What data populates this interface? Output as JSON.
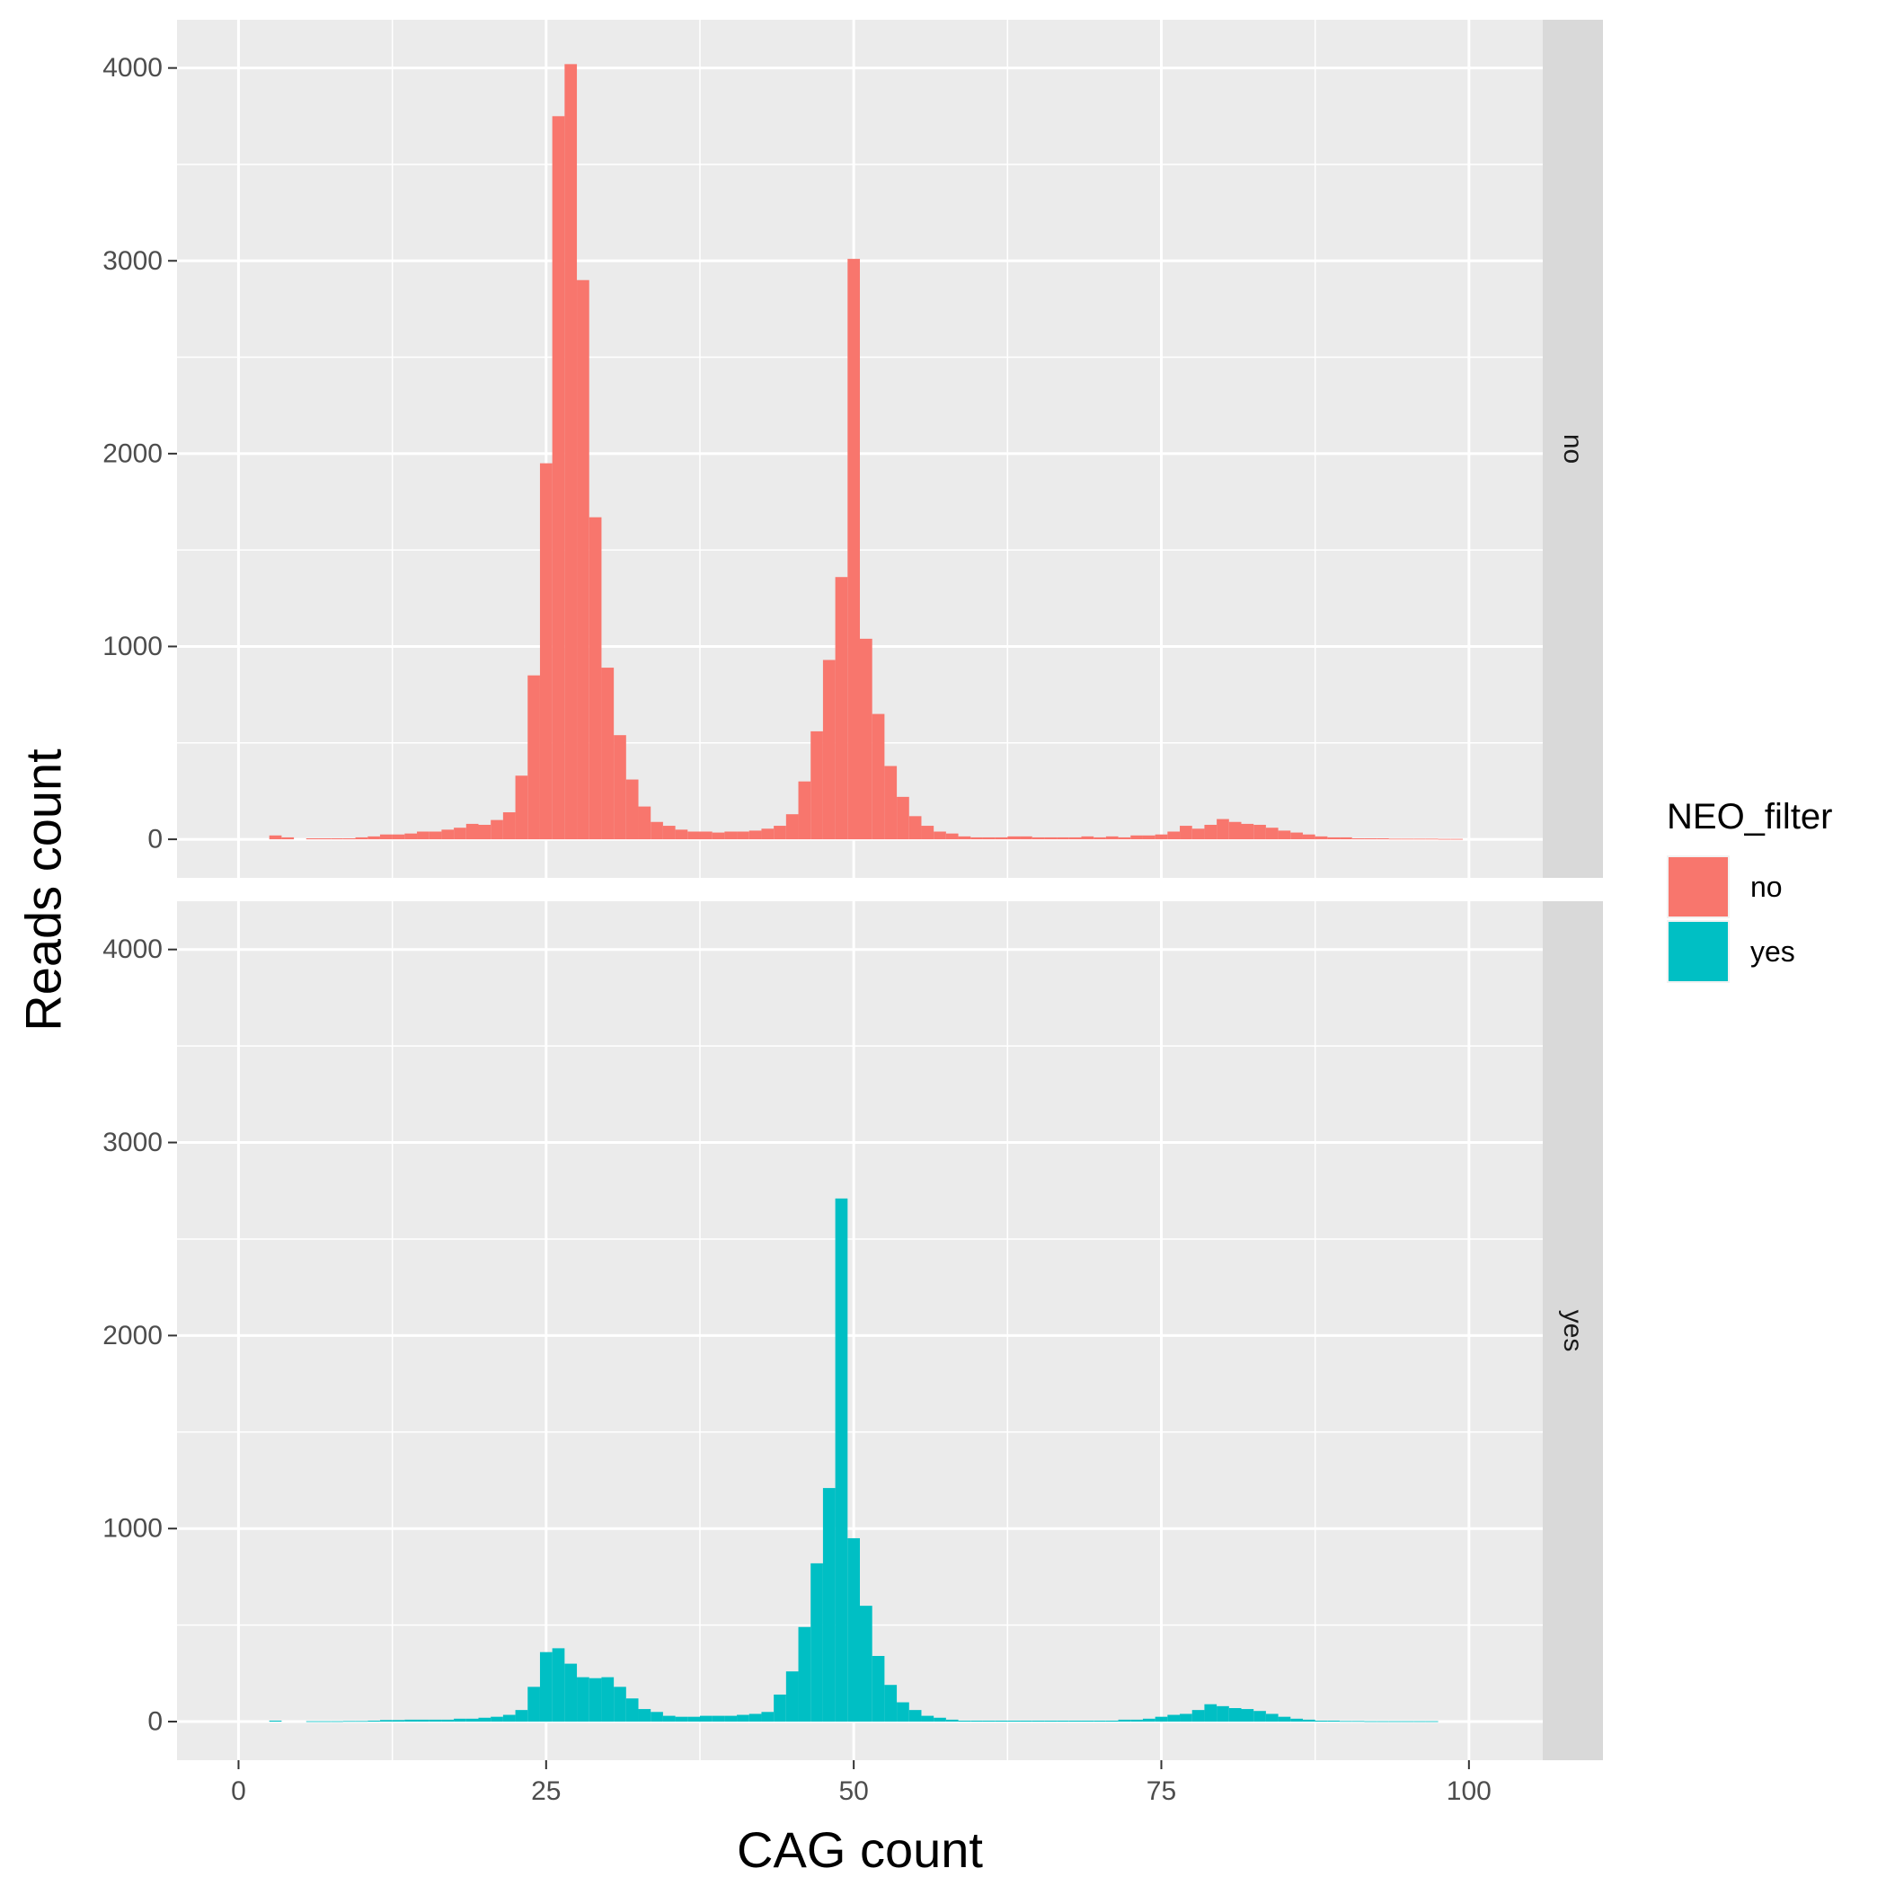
{
  "chart_data": {
    "type": "bar",
    "subtype": "faceted-histogram",
    "xlabel": "CAG count",
    "ylabel": "Reads count",
    "xlim": [
      -5,
      106
    ],
    "ylim": [
      -200,
      4250
    ],
    "x_ticks": [
      0,
      25,
      50,
      75,
      100
    ],
    "x_tick_labels": [
      "0",
      "25",
      "50",
      "75",
      "100"
    ],
    "y_ticks": [
      0,
      1000,
      2000,
      3000,
      4000
    ],
    "y_tick_labels": [
      "0",
      "1000",
      "2000",
      "3000",
      "4000"
    ],
    "bin_width": 1,
    "grid": true,
    "legend": {
      "title": "NEO_filter",
      "position": "right",
      "items": [
        {
          "label": "no",
          "color": "#F8766D"
        },
        {
          "label": "yes",
          "color": "#00BFC4"
        }
      ]
    },
    "facets": [
      {
        "label": "no",
        "color": "#F8766D",
        "bins": [
          {
            "x": 3,
            "y": 20
          },
          {
            "x": 4,
            "y": 10
          },
          {
            "x": 6,
            "y": 5
          },
          {
            "x": 7,
            "y": 5
          },
          {
            "x": 8,
            "y": 5
          },
          {
            "x": 9,
            "y": 5
          },
          {
            "x": 10,
            "y": 10
          },
          {
            "x": 11,
            "y": 15
          },
          {
            "x": 12,
            "y": 25
          },
          {
            "x": 13,
            "y": 25
          },
          {
            "x": 14,
            "y": 30
          },
          {
            "x": 15,
            "y": 40
          },
          {
            "x": 16,
            "y": 40
          },
          {
            "x": 17,
            "y": 50
          },
          {
            "x": 18,
            "y": 60
          },
          {
            "x": 19,
            "y": 80
          },
          {
            "x": 20,
            "y": 75
          },
          {
            "x": 21,
            "y": 100
          },
          {
            "x": 22,
            "y": 140
          },
          {
            "x": 23,
            "y": 330
          },
          {
            "x": 24,
            "y": 850
          },
          {
            "x": 25,
            "y": 1950
          },
          {
            "x": 26,
            "y": 3750
          },
          {
            "x": 27,
            "y": 4020
          },
          {
            "x": 28,
            "y": 2900
          },
          {
            "x": 29,
            "y": 1670
          },
          {
            "x": 30,
            "y": 890
          },
          {
            "x": 31,
            "y": 540
          },
          {
            "x": 32,
            "y": 310
          },
          {
            "x": 33,
            "y": 170
          },
          {
            "x": 34,
            "y": 90
          },
          {
            "x": 35,
            "y": 70
          },
          {
            "x": 36,
            "y": 50
          },
          {
            "x": 37,
            "y": 40
          },
          {
            "x": 38,
            "y": 40
          },
          {
            "x": 39,
            "y": 35
          },
          {
            "x": 40,
            "y": 40
          },
          {
            "x": 41,
            "y": 40
          },
          {
            "x": 42,
            "y": 45
          },
          {
            "x": 43,
            "y": 55
          },
          {
            "x": 44,
            "y": 70
          },
          {
            "x": 45,
            "y": 130
          },
          {
            "x": 46,
            "y": 300
          },
          {
            "x": 47,
            "y": 560
          },
          {
            "x": 48,
            "y": 930
          },
          {
            "x": 49,
            "y": 1360
          },
          {
            "x": 50,
            "y": 3010
          },
          {
            "x": 51,
            "y": 1040
          },
          {
            "x": 52,
            "y": 650
          },
          {
            "x": 53,
            "y": 380
          },
          {
            "x": 54,
            "y": 220
          },
          {
            "x": 55,
            "y": 120
          },
          {
            "x": 56,
            "y": 70
          },
          {
            "x": 57,
            "y": 40
          },
          {
            "x": 58,
            "y": 30
          },
          {
            "x": 59,
            "y": 15
          },
          {
            "x": 60,
            "y": 10
          },
          {
            "x": 61,
            "y": 10
          },
          {
            "x": 62,
            "y": 10
          },
          {
            "x": 63,
            "y": 15
          },
          {
            "x": 64,
            "y": 15
          },
          {
            "x": 65,
            "y": 10
          },
          {
            "x": 66,
            "y": 10
          },
          {
            "x": 67,
            "y": 10
          },
          {
            "x": 68,
            "y": 10
          },
          {
            "x": 69,
            "y": 15
          },
          {
            "x": 70,
            "y": 10
          },
          {
            "x": 71,
            "y": 15
          },
          {
            "x": 72,
            "y": 10
          },
          {
            "x": 73,
            "y": 20
          },
          {
            "x": 74,
            "y": 20
          },
          {
            "x": 75,
            "y": 25
          },
          {
            "x": 76,
            "y": 40
          },
          {
            "x": 77,
            "y": 70
          },
          {
            "x": 78,
            "y": 55
          },
          {
            "x": 79,
            "y": 75
          },
          {
            "x": 80,
            "y": 105
          },
          {
            "x": 81,
            "y": 90
          },
          {
            "x": 82,
            "y": 80
          },
          {
            "x": 83,
            "y": 75
          },
          {
            "x": 84,
            "y": 60
          },
          {
            "x": 85,
            "y": 45
          },
          {
            "x": 86,
            "y": 35
          },
          {
            "x": 87,
            "y": 25
          },
          {
            "x": 88,
            "y": 15
          },
          {
            "x": 89,
            "y": 10
          },
          {
            "x": 90,
            "y": 10
          },
          {
            "x": 91,
            "y": 5
          },
          {
            "x": 92,
            "y": 5
          },
          {
            "x": 93,
            "y": 5
          },
          {
            "x": 94,
            "y": 3
          },
          {
            "x": 95,
            "y": 3
          },
          {
            "x": 96,
            "y": 3
          },
          {
            "x": 97,
            "y": 3
          },
          {
            "x": 98,
            "y": 2
          },
          {
            "x": 99,
            "y": 2
          }
        ]
      },
      {
        "label": "yes",
        "color": "#00BFC4",
        "bins": [
          {
            "x": 3,
            "y": 5
          },
          {
            "x": 6,
            "y": 2
          },
          {
            "x": 7,
            "y": 2
          },
          {
            "x": 8,
            "y": 2
          },
          {
            "x": 9,
            "y": 3
          },
          {
            "x": 10,
            "y": 3
          },
          {
            "x": 11,
            "y": 5
          },
          {
            "x": 12,
            "y": 8
          },
          {
            "x": 13,
            "y": 8
          },
          {
            "x": 14,
            "y": 10
          },
          {
            "x": 15,
            "y": 10
          },
          {
            "x": 16,
            "y": 10
          },
          {
            "x": 17,
            "y": 10
          },
          {
            "x": 18,
            "y": 15
          },
          {
            "x": 19,
            "y": 15
          },
          {
            "x": 20,
            "y": 20
          },
          {
            "x": 21,
            "y": 25
          },
          {
            "x": 22,
            "y": 35
          },
          {
            "x": 23,
            "y": 60
          },
          {
            "x": 24,
            "y": 180
          },
          {
            "x": 25,
            "y": 360
          },
          {
            "x": 26,
            "y": 380
          },
          {
            "x": 27,
            "y": 300
          },
          {
            "x": 28,
            "y": 230
          },
          {
            "x": 29,
            "y": 225
          },
          {
            "x": 30,
            "y": 230
          },
          {
            "x": 31,
            "y": 180
          },
          {
            "x": 32,
            "y": 120
          },
          {
            "x": 33,
            "y": 65
          },
          {
            "x": 34,
            "y": 50
          },
          {
            "x": 35,
            "y": 30
          },
          {
            "x": 36,
            "y": 25
          },
          {
            "x": 37,
            "y": 25
          },
          {
            "x": 38,
            "y": 30
          },
          {
            "x": 39,
            "y": 30
          },
          {
            "x": 40,
            "y": 30
          },
          {
            "x": 41,
            "y": 35
          },
          {
            "x": 42,
            "y": 40
          },
          {
            "x": 43,
            "y": 50
          },
          {
            "x": 44,
            "y": 140
          },
          {
            "x": 45,
            "y": 260
          },
          {
            "x": 46,
            "y": 490
          },
          {
            "x": 47,
            "y": 820
          },
          {
            "x": 48,
            "y": 1210
          },
          {
            "x": 49,
            "y": 2710
          },
          {
            "x": 50,
            "y": 950
          },
          {
            "x": 51,
            "y": 600
          },
          {
            "x": 52,
            "y": 340
          },
          {
            "x": 53,
            "y": 190
          },
          {
            "x": 54,
            "y": 100
          },
          {
            "x": 55,
            "y": 60
          },
          {
            "x": 56,
            "y": 30
          },
          {
            "x": 57,
            "y": 20
          },
          {
            "x": 58,
            "y": 10
          },
          {
            "x": 59,
            "y": 5
          },
          {
            "x": 60,
            "y": 5
          },
          {
            "x": 61,
            "y": 5
          },
          {
            "x": 62,
            "y": 5
          },
          {
            "x": 63,
            "y": 5
          },
          {
            "x": 64,
            "y": 5
          },
          {
            "x": 65,
            "y": 5
          },
          {
            "x": 66,
            "y": 5
          },
          {
            "x": 67,
            "y": 5
          },
          {
            "x": 68,
            "y": 5
          },
          {
            "x": 69,
            "y": 5
          },
          {
            "x": 70,
            "y": 5
          },
          {
            "x": 71,
            "y": 5
          },
          {
            "x": 72,
            "y": 10
          },
          {
            "x": 73,
            "y": 10
          },
          {
            "x": 74,
            "y": 15
          },
          {
            "x": 75,
            "y": 25
          },
          {
            "x": 76,
            "y": 35
          },
          {
            "x": 77,
            "y": 40
          },
          {
            "x": 78,
            "y": 60
          },
          {
            "x": 79,
            "y": 90
          },
          {
            "x": 80,
            "y": 80
          },
          {
            "x": 81,
            "y": 70
          },
          {
            "x": 82,
            "y": 65
          },
          {
            "x": 83,
            "y": 55
          },
          {
            "x": 84,
            "y": 40
          },
          {
            "x": 85,
            "y": 25
          },
          {
            "x": 86,
            "y": 15
          },
          {
            "x": 87,
            "y": 10
          },
          {
            "x": 88,
            "y": 5
          },
          {
            "x": 89,
            "y": 5
          },
          {
            "x": 90,
            "y": 3
          },
          {
            "x": 91,
            "y": 3
          },
          {
            "x": 92,
            "y": 2
          },
          {
            "x": 93,
            "y": 2
          },
          {
            "x": 94,
            "y": 2
          },
          {
            "x": 95,
            "y": 2
          },
          {
            "x": 96,
            "y": 2
          },
          {
            "x": 97,
            "y": 2
          }
        ]
      }
    ]
  }
}
